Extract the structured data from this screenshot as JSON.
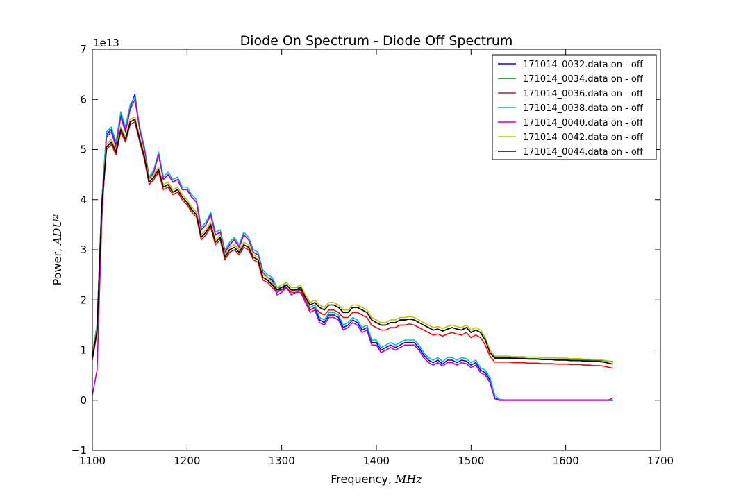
{
  "chart_data": {
    "type": "line",
    "title": "Diode On Spectrum - Diode Off Spectrum",
    "xlabel": "Frequency, ",
    "xlabel_unit": "MHz",
    "ylabel": "Power, ",
    "ylabel_unit": "ADU²",
    "y_offset_text": "1e13",
    "xlim": [
      1100,
      1700
    ],
    "ylim": [
      -1,
      7
    ],
    "xticks": [
      1100,
      1200,
      1300,
      1400,
      1500,
      1600,
      1700
    ],
    "yticks": [
      -1,
      0,
      1,
      2,
      3,
      4,
      5,
      6,
      7
    ],
    "grid": false,
    "legend_position": "top-right",
    "x": [
      1100,
      1105,
      1110,
      1115,
      1120,
      1125,
      1130,
      1135,
      1140,
      1145,
      1150,
      1155,
      1160,
      1165,
      1170,
      1175,
      1180,
      1185,
      1190,
      1195,
      1200,
      1205,
      1210,
      1215,
      1220,
      1225,
      1230,
      1235,
      1240,
      1245,
      1250,
      1255,
      1260,
      1265,
      1270,
      1275,
      1280,
      1285,
      1290,
      1295,
      1300,
      1305,
      1310,
      1315,
      1320,
      1325,
      1330,
      1335,
      1340,
      1345,
      1350,
      1355,
      1360,
      1365,
      1370,
      1375,
      1380,
      1385,
      1390,
      1395,
      1400,
      1405,
      1410,
      1415,
      1420,
      1425,
      1430,
      1435,
      1440,
      1445,
      1450,
      1455,
      1460,
      1465,
      1470,
      1475,
      1480,
      1485,
      1490,
      1495,
      1500,
      1505,
      1510,
      1515,
      1520,
      1525,
      1530,
      1535,
      1540,
      1545,
      1550,
      1555,
      1560,
      1565,
      1570,
      1575,
      1580,
      1585,
      1590,
      1595,
      1600,
      1605,
      1610,
      1615,
      1620,
      1625,
      1630,
      1635,
      1640,
      1645,
      1650
    ],
    "series": [
      {
        "name": "171014_0032.data on - off",
        "color": "#0000ff",
        "values": [
          0.9,
          1.5,
          4.0,
          5.3,
          5.4,
          5.1,
          5.7,
          5.4,
          5.85,
          6.1,
          5.4,
          5.0,
          4.4,
          4.55,
          4.9,
          4.4,
          4.5,
          4.35,
          4.4,
          4.2,
          4.2,
          4.05,
          3.95,
          3.4,
          3.5,
          3.7,
          3.3,
          3.35,
          2.95,
          3.1,
          3.2,
          3.05,
          3.3,
          3.2,
          2.95,
          2.9,
          2.55,
          2.45,
          2.4,
          2.2,
          2.2,
          2.3,
          2.2,
          2.2,
          2.2,
          2.0,
          1.8,
          1.85,
          1.6,
          1.55,
          1.7,
          1.7,
          1.65,
          1.45,
          1.5,
          1.6,
          1.55,
          1.4,
          1.45,
          1.15,
          1.15,
          1.0,
          1.05,
          1.1,
          1.05,
          1.1,
          1.15,
          1.15,
          1.15,
          1.05,
          0.9,
          0.8,
          0.75,
          0.8,
          0.72,
          0.8,
          0.8,
          0.75,
          0.8,
          0.78,
          0.7,
          0.75,
          0.6,
          0.55,
          0.4,
          0.05,
          0.0,
          0.0,
          0.0,
          0.0,
          0.0,
          0.0,
          0.0,
          0.0,
          0.0,
          0.0,
          0.0,
          0.0,
          0.0,
          0.0,
          0.0,
          0.0,
          0.0,
          0.0,
          0.0,
          0.0,
          0.0,
          0.0,
          0.0,
          0.0,
          0.0
        ]
      },
      {
        "name": "171014_0034.data on - off",
        "color": "#008000",
        "values": [
          0.85,
          1.4,
          3.9,
          5.05,
          5.15,
          4.95,
          5.4,
          5.2,
          5.55,
          5.6,
          5.2,
          4.85,
          4.35,
          4.45,
          4.6,
          4.25,
          4.3,
          4.15,
          4.2,
          4.05,
          3.95,
          3.8,
          3.7,
          3.25,
          3.35,
          3.5,
          3.15,
          3.25,
          2.85,
          3.0,
          3.05,
          2.95,
          3.1,
          3.05,
          2.85,
          2.8,
          2.45,
          2.4,
          2.3,
          2.2,
          2.25,
          2.3,
          2.2,
          2.2,
          2.25,
          2.05,
          1.9,
          1.95,
          1.85,
          1.8,
          1.9,
          1.9,
          1.85,
          1.75,
          1.75,
          1.85,
          1.85,
          1.8,
          1.75,
          1.6,
          1.55,
          1.5,
          1.5,
          1.55,
          1.55,
          1.6,
          1.6,
          1.62,
          1.6,
          1.55,
          1.5,
          1.45,
          1.4,
          1.42,
          1.38,
          1.42,
          1.45,
          1.42,
          1.4,
          1.45,
          1.35,
          1.4,
          1.35,
          1.2,
          0.95,
          0.85,
          0.85,
          0.85,
          0.85,
          0.85,
          0.84,
          0.84,
          0.83,
          0.83,
          0.83,
          0.82,
          0.82,
          0.82,
          0.81,
          0.81,
          0.81,
          0.8,
          0.8,
          0.8,
          0.8,
          0.8,
          0.79,
          0.79,
          0.79,
          0.78,
          0.77
        ]
      },
      {
        "name": "171014_0036.data on - off",
        "color": "#ff0000",
        "values": [
          0.8,
          1.35,
          3.8,
          5.0,
          5.1,
          4.9,
          5.35,
          5.15,
          5.5,
          5.55,
          5.15,
          4.8,
          4.3,
          4.4,
          4.55,
          4.2,
          4.25,
          4.1,
          4.15,
          4.0,
          3.9,
          3.75,
          3.65,
          3.2,
          3.3,
          3.45,
          3.1,
          3.2,
          2.8,
          2.95,
          3.0,
          2.9,
          3.05,
          3.0,
          2.8,
          2.75,
          2.4,
          2.35,
          2.25,
          2.15,
          2.2,
          2.25,
          2.15,
          2.15,
          2.2,
          2.0,
          1.8,
          1.85,
          1.75,
          1.7,
          1.8,
          1.8,
          1.75,
          1.65,
          1.65,
          1.75,
          1.75,
          1.7,
          1.65,
          1.5,
          1.45,
          1.4,
          1.4,
          1.45,
          1.45,
          1.5,
          1.5,
          1.52,
          1.5,
          1.45,
          1.4,
          1.35,
          1.3,
          1.32,
          1.28,
          1.32,
          1.35,
          1.32,
          1.3,
          1.35,
          1.25,
          1.3,
          1.25,
          1.1,
          0.88,
          0.76,
          0.76,
          0.76,
          0.76,
          0.75,
          0.75,
          0.75,
          0.74,
          0.74,
          0.74,
          0.73,
          0.73,
          0.73,
          0.72,
          0.72,
          0.72,
          0.71,
          0.71,
          0.71,
          0.7,
          0.7,
          0.69,
          0.69,
          0.68,
          0.66,
          0.64
        ]
      },
      {
        "name": "171014_0038.data on - off",
        "color": "#00bfbf",
        "values": [
          0.95,
          1.5,
          4.0,
          5.35,
          5.45,
          5.15,
          5.75,
          5.45,
          5.9,
          6.05,
          5.45,
          5.05,
          4.45,
          4.6,
          4.95,
          4.45,
          4.55,
          4.4,
          4.45,
          4.25,
          4.25,
          4.1,
          4.0,
          3.45,
          3.55,
          3.75,
          3.35,
          3.4,
          3.0,
          3.15,
          3.25,
          3.1,
          3.35,
          3.25,
          3.0,
          2.95,
          2.6,
          2.5,
          2.45,
          2.25,
          2.25,
          2.35,
          2.25,
          2.25,
          2.25,
          2.05,
          1.85,
          1.9,
          1.65,
          1.6,
          1.75,
          1.75,
          1.7,
          1.5,
          1.55,
          1.65,
          1.6,
          1.45,
          1.5,
          1.2,
          1.2,
          1.05,
          1.1,
          1.15,
          1.1,
          1.15,
          1.2,
          1.2,
          1.2,
          1.1,
          0.95,
          0.85,
          0.8,
          0.85,
          0.77,
          0.85,
          0.85,
          0.8,
          0.85,
          0.83,
          0.75,
          0.8,
          0.65,
          0.6,
          0.45,
          0.1,
          0.02,
          0.01,
          0.01,
          0.01,
          0.01,
          0.01,
          0.01,
          0.01,
          0.01,
          0.01,
          0.01,
          0.01,
          0.01,
          0.01,
          0.01,
          0.01,
          0.01,
          0.01,
          0.01,
          0.01,
          0.01,
          0.01,
          0.01,
          0.01,
          0.01
        ]
      },
      {
        "name": "171014_0040.data on - off",
        "color": "#bf00bf",
        "values": [
          0.1,
          0.6,
          3.6,
          5.25,
          5.35,
          5.05,
          5.65,
          5.35,
          5.8,
          6.0,
          5.4,
          5.0,
          4.4,
          4.55,
          4.9,
          4.4,
          4.5,
          4.35,
          4.4,
          4.2,
          4.2,
          4.05,
          3.95,
          3.4,
          3.5,
          3.7,
          3.3,
          3.35,
          2.95,
          3.1,
          3.2,
          3.05,
          3.3,
          3.2,
          2.95,
          2.9,
          2.55,
          2.45,
          2.35,
          2.1,
          2.15,
          2.25,
          2.1,
          2.15,
          2.15,
          1.95,
          1.75,
          1.8,
          1.55,
          1.5,
          1.65,
          1.65,
          1.6,
          1.4,
          1.45,
          1.55,
          1.5,
          1.35,
          1.4,
          1.1,
          1.1,
          0.95,
          1.0,
          1.05,
          1.0,
          1.05,
          1.1,
          1.1,
          1.1,
          1.0,
          0.85,
          0.75,
          0.7,
          0.75,
          0.68,
          0.75,
          0.75,
          0.7,
          0.75,
          0.73,
          0.65,
          0.7,
          0.55,
          0.5,
          0.35,
          0.03,
          0.0,
          0.0,
          0.0,
          0.0,
          0.0,
          0.0,
          0.0,
          0.0,
          0.0,
          0.0,
          0.0,
          0.0,
          0.0,
          0.0,
          0.0,
          0.0,
          0.0,
          0.0,
          0.0,
          0.0,
          0.0,
          0.0,
          0.0,
          0.0,
          0.05
        ]
      },
      {
        "name": "171014_0042.data on - off",
        "color": "#bfbf00",
        "values": [
          0.9,
          1.45,
          3.95,
          5.1,
          5.2,
          5.0,
          5.45,
          5.25,
          5.6,
          5.65,
          5.25,
          4.9,
          4.4,
          4.5,
          4.65,
          4.3,
          4.35,
          4.2,
          4.25,
          4.1,
          4.0,
          3.85,
          3.75,
          3.3,
          3.4,
          3.55,
          3.2,
          3.3,
          2.9,
          3.05,
          3.1,
          3.0,
          3.15,
          3.1,
          2.9,
          2.85,
          2.5,
          2.45,
          2.35,
          2.25,
          2.3,
          2.35,
          2.25,
          2.25,
          2.3,
          2.1,
          1.95,
          2.0,
          1.9,
          1.85,
          1.95,
          1.95,
          1.9,
          1.8,
          1.8,
          1.9,
          1.9,
          1.85,
          1.8,
          1.65,
          1.6,
          1.55,
          1.55,
          1.6,
          1.6,
          1.65,
          1.65,
          1.67,
          1.65,
          1.6,
          1.55,
          1.5,
          1.45,
          1.47,
          1.43,
          1.47,
          1.5,
          1.47,
          1.45,
          1.5,
          1.4,
          1.45,
          1.4,
          1.25,
          1.0,
          0.88,
          0.88,
          0.88,
          0.88,
          0.87,
          0.87,
          0.87,
          0.86,
          0.86,
          0.86,
          0.85,
          0.85,
          0.85,
          0.84,
          0.84,
          0.84,
          0.83,
          0.83,
          0.83,
          0.82,
          0.82,
          0.81,
          0.81,
          0.8,
          0.78,
          0.76
        ]
      },
      {
        "name": "171014_0044.data on - off",
        "color": "#000000",
        "values": [
          0.85,
          1.4,
          3.9,
          5.05,
          5.15,
          4.95,
          5.4,
          5.2,
          5.55,
          5.6,
          5.2,
          4.85,
          4.35,
          4.45,
          4.6,
          4.25,
          4.3,
          4.15,
          4.2,
          4.05,
          3.95,
          3.8,
          3.7,
          3.25,
          3.35,
          3.5,
          3.15,
          3.25,
          2.85,
          3.0,
          3.05,
          2.95,
          3.1,
          3.05,
          2.85,
          2.8,
          2.45,
          2.4,
          2.3,
          2.2,
          2.25,
          2.3,
          2.2,
          2.2,
          2.25,
          2.05,
          1.9,
          1.95,
          1.85,
          1.8,
          1.9,
          1.9,
          1.85,
          1.75,
          1.75,
          1.85,
          1.85,
          1.8,
          1.75,
          1.6,
          1.55,
          1.5,
          1.5,
          1.55,
          1.55,
          1.6,
          1.6,
          1.62,
          1.6,
          1.55,
          1.5,
          1.45,
          1.4,
          1.42,
          1.38,
          1.42,
          1.45,
          1.42,
          1.4,
          1.45,
          1.35,
          1.4,
          1.35,
          1.2,
          0.95,
          0.84,
          0.84,
          0.84,
          0.84,
          0.83,
          0.83,
          0.83,
          0.82,
          0.82,
          0.82,
          0.81,
          0.81,
          0.81,
          0.8,
          0.8,
          0.8,
          0.79,
          0.79,
          0.79,
          0.78,
          0.78,
          0.77,
          0.77,
          0.76,
          0.74,
          0.72
        ]
      }
    ]
  }
}
